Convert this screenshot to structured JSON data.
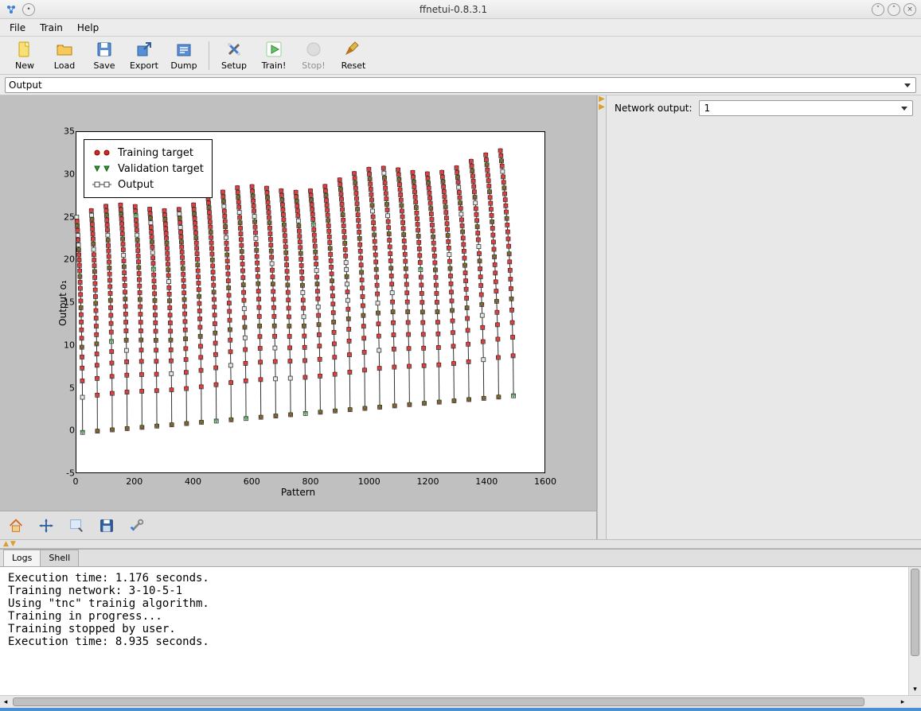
{
  "window": {
    "title": "ffnetui-0.8.3.1",
    "minimize_icon": "minimize-icon",
    "maximize_icon": "maximize-icon",
    "close_icon": "close-icon"
  },
  "menubar": [
    "File",
    "Train",
    "Help"
  ],
  "toolbar": [
    {
      "id": "new",
      "label": "New",
      "icon": "file-new-icon",
      "enabled": true,
      "color": "#f7e07a",
      "stroke": "#c9a300"
    },
    {
      "id": "load",
      "label": "Load",
      "icon": "folder-open-icon",
      "enabled": true,
      "color": "#f7c95a",
      "stroke": "#b57f1a"
    },
    {
      "id": "save",
      "label": "Save",
      "icon": "save-icon",
      "enabled": true,
      "color": "#5a8fd6",
      "stroke": "#2f5e9e"
    },
    {
      "id": "export",
      "label": "Export",
      "icon": "export-icon",
      "enabled": true,
      "color": "#5a8fd6",
      "stroke": "#2f5e9e"
    },
    {
      "id": "dump",
      "label": "Dump",
      "icon": "dump-icon",
      "enabled": true,
      "color": "#5a8fd6",
      "stroke": "#2f5e9e"
    },
    {
      "sep": true
    },
    {
      "id": "setup",
      "label": "Setup",
      "icon": "tools-icon",
      "enabled": true,
      "color": "#d0d0d0",
      "stroke": "#666"
    },
    {
      "id": "train",
      "label": "Train!",
      "icon": "play-icon",
      "enabled": true,
      "color": "#6cc06c",
      "stroke": "#2e8b2e"
    },
    {
      "id": "stop",
      "label": "Stop!",
      "icon": "stop-icon",
      "enabled": false,
      "color": "#c8c8c8",
      "stroke": "#888"
    },
    {
      "id": "reset",
      "label": "Reset",
      "icon": "broom-icon",
      "enabled": true,
      "color": "#e2b84a",
      "stroke": "#a07616"
    }
  ],
  "view_combo": {
    "value": "Output"
  },
  "side": {
    "label": "Network output:",
    "value": "1"
  },
  "plot": {
    "type": "scatter-line",
    "xlabel": "Pattern",
    "ylabel": "Output o₁",
    "xlim": [
      0,
      1600
    ],
    "xtick_step": 200,
    "ylim": [
      -5,
      35
    ],
    "ytick_step": 5,
    "background_color": "#ffffff",
    "axes_border_color": "#000000",
    "tick_fontsize": 11,
    "label_fontsize": 12,
    "legend_fontsize": 13,
    "legend": {
      "position": "upper-left",
      "items": [
        {
          "marker": "circle",
          "fill": "#d62728",
          "edge": "#800000",
          "label": "Training target"
        },
        {
          "marker": "triangle-down",
          "fill": "#2ca02c",
          "edge": "#145214",
          "label": "Validation target"
        },
        {
          "marker": "square-line",
          "fill": "#ffffff",
          "edge": "#404040",
          "label": "Output"
        }
      ]
    },
    "series_style": {
      "output_marker": {
        "shape": "square",
        "size": 5,
        "fill": "#e8e8e8",
        "edge": "#303030",
        "line_color": "#303030",
        "line_width": 1
      },
      "training_marker": {
        "shape": "circle",
        "size": 4,
        "fill": "#d62728",
        "edge": "#800000"
      },
      "validation_marker": {
        "shape": "triangle-down",
        "size": 5,
        "fill": "#2ca02c",
        "edge": "#145214"
      }
    },
    "n_groups": 30,
    "points_per_group": 55,
    "group_span_x": 50,
    "group_peak_start": 25,
    "group_peak_end": 32,
    "group_peak_trend": "increasing",
    "group_bottom_start": -0.3,
    "group_bottom_end": 4,
    "curve_shape": "decreasing-exponential-sweep"
  },
  "plot_toolbar": [
    {
      "id": "home",
      "icon": "home-icon",
      "color": "#d46a1f"
    },
    {
      "id": "pan",
      "icon": "move-icon",
      "color": "#2f5e9e"
    },
    {
      "id": "zoom",
      "icon": "zoom-rect-icon",
      "color": "#8aa9d8"
    },
    {
      "id": "savefig",
      "icon": "floppy-icon",
      "color": "#2f5e9e"
    },
    {
      "id": "config",
      "icon": "wrench-icon",
      "color": "#888"
    }
  ],
  "tabs": [
    {
      "id": "logs",
      "label": "Logs",
      "active": true
    },
    {
      "id": "shell",
      "label": "Shell",
      "active": false
    }
  ],
  "log_lines": [
    "Execution time: 1.176 seconds.",
    "Training network: 3-10-5-1",
    "Using \"tnc\" trainig algorithm.",
    "Training in progress...",
    "Training stopped by user.",
    "Execution time: 8.935 seconds."
  ],
  "colors": {
    "window_bg": "#e8e8e8",
    "canvas_bg": "#c0c0c0",
    "accent": "#4a90d9"
  }
}
